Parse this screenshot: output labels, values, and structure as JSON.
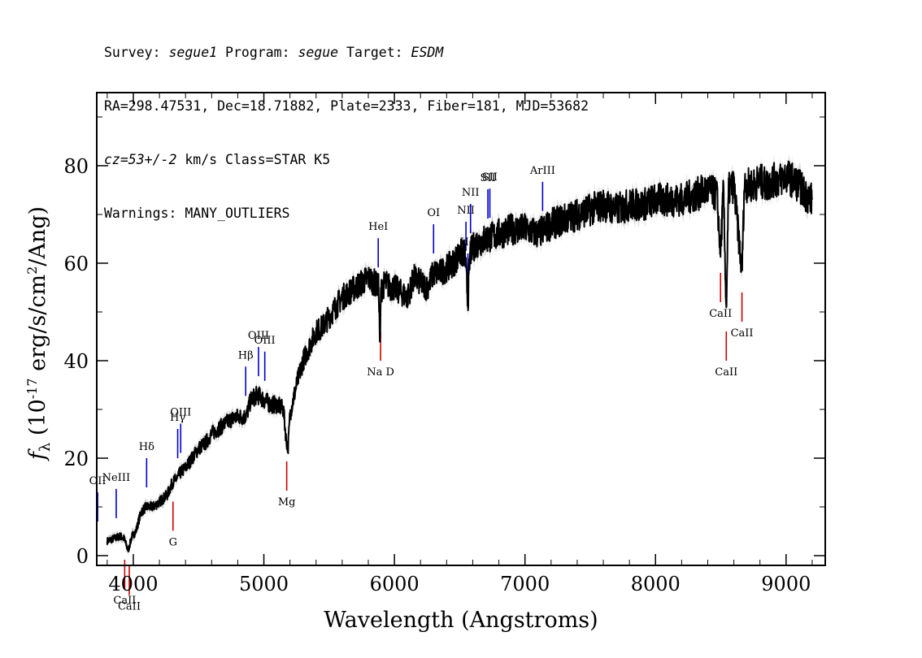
{
  "header": {
    "line1": {
      "survey_label": "Survey: ",
      "survey": "segue1",
      "program_label": " Program: ",
      "program": "segue",
      "target_label": " Target: ",
      "target": "ESDM"
    },
    "line2": "RA=298.47531, Dec=18.71882, Plate=2333, Fiber=181, MJD=53682",
    "line3": {
      "cz_label": "cz=53+/-2",
      "rest": " km/s Class=STAR K5"
    },
    "line4": "Warnings: MANY_OUTLIERS"
  },
  "chart_data": {
    "type": "line",
    "xlabel": "Wavelength (Angstroms)",
    "ylabel": "f_λ (10^-17 erg/s/cm^2/Ang)",
    "xlim": [
      3720,
      9300
    ],
    "ylim": [
      -2,
      95
    ],
    "x_ticks": [
      4000,
      5000,
      6000,
      7000,
      8000,
      9000
    ],
    "y_ticks": [
      0,
      20,
      40,
      60,
      80
    ],
    "spectrum": {
      "x": [
        3800,
        3850,
        3900,
        3930,
        3960,
        3990,
        4020,
        4060,
        4100,
        4150,
        4200,
        4260,
        4300,
        4340,
        4360,
        4400,
        4450,
        4500,
        4550,
        4600,
        4650,
        4700,
        4750,
        4800,
        4850,
        4870,
        4900,
        4950,
        5000,
        5050,
        5100,
        5150,
        5170,
        5185,
        5200,
        5250,
        5300,
        5350,
        5400,
        5450,
        5500,
        5550,
        5600,
        5650,
        5700,
        5750,
        5800,
        5850,
        5880,
        5890,
        5896,
        5905,
        5930,
        5970,
        6000,
        6050,
        6100,
        6150,
        6200,
        6250,
        6300,
        6350,
        6400,
        6450,
        6500,
        6540,
        6563,
        6580,
        6620,
        6700,
        6800,
        6900,
        7000,
        7100,
        7200,
        7300,
        7400,
        7500,
        7600,
        7700,
        7800,
        7900,
        8000,
        8100,
        8200,
        8300,
        8400,
        8470,
        8498,
        8520,
        8542,
        8560,
        8600,
        8662,
        8680,
        8750,
        8800,
        8850,
        8900,
        8950,
        9000,
        9050,
        9100,
        9150,
        9200
      ],
      "y": [
        3,
        3.5,
        4,
        3.5,
        1,
        4,
        5,
        9,
        10,
        10,
        11,
        12.5,
        15,
        16,
        17,
        18,
        20,
        22,
        23,
        25,
        26,
        27,
        28,
        28.5,
        28.5,
        29,
        32,
        33,
        32,
        31,
        31,
        30,
        24,
        22,
        29,
        35,
        40,
        43,
        46,
        47,
        49,
        51,
        53,
        54,
        55,
        56,
        57,
        56,
        55,
        42,
        54,
        55,
        56,
        55,
        55,
        54,
        53,
        57,
        56,
        55,
        58,
        58,
        59,
        60,
        62,
        62,
        52,
        62,
        64,
        65,
        66,
        67,
        67,
        66,
        68,
        69,
        70,
        71,
        72,
        71,
        72,
        72,
        73,
        73,
        73,
        74,
        75,
        74,
        62,
        75,
        50,
        75,
        76,
        58,
        76,
        76,
        77,
        76,
        77,
        77,
        78,
        77,
        76,
        74,
        73
      ]
    },
    "emission_lines": [
      {
        "label": "OII",
        "x": 3727
      },
      {
        "label": "NeIII",
        "x": 3869
      },
      {
        "label": "Hδ",
        "x": 4102
      },
      {
        "label": "Hγ",
        "x": 4340
      },
      {
        "label": "OIII",
        "x": 4363
      },
      {
        "label": "Hβ",
        "x": 4861
      },
      {
        "label": "OIII",
        "x": 4959
      },
      {
        "label": "OIII",
        "x": 5007
      },
      {
        "label": "HeI",
        "x": 5876
      },
      {
        "label": "OI",
        "x": 6300
      },
      {
        "label": "NII",
        "x": 6548
      },
      {
        "label": "Hα",
        "x": 6563
      },
      {
        "label": "NII",
        "x": 6583
      },
      {
        "label": "SII",
        "x": 6716
      },
      {
        "label": "SII",
        "x": 6731
      },
      {
        "label": "ArIII",
        "x": 7135
      }
    ],
    "absorption_lines": [
      {
        "label": "CaII",
        "x": 3934
      },
      {
        "label": "CaII",
        "x": 3969
      },
      {
        "label": "G",
        "x": 4304
      },
      {
        "label": "Mg",
        "x": 5175
      },
      {
        "label": "Na D",
        "x": 5894
      },
      {
        "label": "CaII",
        "x": 8498
      },
      {
        "label": "CaII",
        "x": 8542
      },
      {
        "label": "CaII",
        "x": 8662
      }
    ],
    "colors": {
      "spectrum": "#000000",
      "error": "#bfbfbf",
      "emission": "#0000cc",
      "absorption": "#cc0000"
    }
  }
}
